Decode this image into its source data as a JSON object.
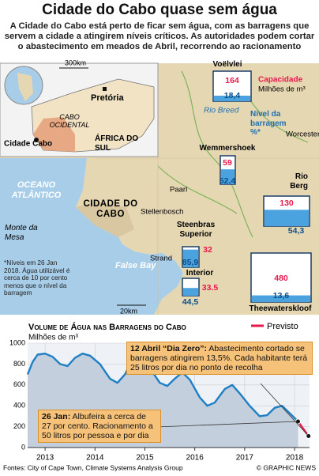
{
  "header": {
    "title": "Cidade do Cabo quase sem água",
    "subtitle": "A Cidade do Cabo está perto de ficar sem água, com as barragens que servem a cidade a atingirem níveis críticos. As autoridades podem cortar o abastecimento em meados de Abril, recorrendo ao racionamento"
  },
  "inset": {
    "scale": "300km",
    "city": "Pretória",
    "province": "CABO OCIDENTAL",
    "country": "ÁFRICA DO SUL",
    "cape_town": "Cidade Cabo"
  },
  "map": {
    "ocean": "OCEANO ATLÂNTICO",
    "city": "CIDADE DO CABO",
    "mountain": "Monte da Mesa",
    "bay": "False Bay",
    "places": [
      "Paarl",
      "Stellenbosch",
      "Strand",
      "Worcester"
    ],
    "river": "Rio Breed",
    "scale": "20km",
    "footnote": "*Níveis em 26 Jan 2018. Água utilizável é cerca de 10 por cento menos que o nível da barragem",
    "legend": {
      "capacity": "Capacidade",
      "unit": "Milhões de m³",
      "level": "Nível da barragem %*"
    },
    "dams": [
      {
        "name": "Voëlvlei",
        "capacity": 164,
        "level": {
          "value": 18.4,
          "label": "18,4"
        }
      },
      {
        "name": "Wemmershoek",
        "capacity": 59,
        "level": {
          "value": 52.4,
          "label": "52,4"
        }
      },
      {
        "name": "Rio Berg",
        "capacity": 130,
        "level": {
          "value": 54.3,
          "label": "54,3"
        }
      },
      {
        "name": "Steenbras Superior",
        "capacity": 32,
        "level": {
          "value": 85.9,
          "label": "85,9"
        }
      },
      {
        "name": "Interior",
        "capacity": 33.5,
        "level": {
          "value": 44.5,
          "label": "44,5"
        }
      },
      {
        "name": "Theewaterskloof",
        "capacity": 480,
        "level": {
          "value": 13.6,
          "label": "13,6"
        }
      }
    ]
  },
  "chart_data": {
    "type": "line",
    "title": "Volume de Água nas Barragens do Cabo",
    "y_label": "Milhões de m³",
    "xlim": [
      2012.65,
      2018.3
    ],
    "xticks": [
      2013,
      2014,
      2015,
      2016,
      2017,
      2018
    ],
    "ylim": [
      0,
      1000
    ],
    "yticks": [
      0,
      200,
      400,
      600,
      800,
      1000
    ],
    "grid": true,
    "area": true,
    "series": [
      {
        "name": "Volume",
        "color": "#1f7fc4",
        "x": [
          2012.65,
          2012.75,
          2012.85,
          2013.0,
          2013.15,
          2013.3,
          2013.45,
          2013.6,
          2013.75,
          2013.9,
          2014.1,
          2014.3,
          2014.45,
          2014.6,
          2014.75,
          2014.9,
          2015.1,
          2015.3,
          2015.45,
          2015.6,
          2015.75,
          2015.9,
          2016.1,
          2016.25,
          2016.4,
          2016.6,
          2016.75,
          2016.9,
          2017.1,
          2017.3,
          2017.45,
          2017.6,
          2017.75,
          2017.9,
          2018.07
        ],
        "values": [
          700,
          820,
          890,
          900,
          870,
          800,
          780,
          860,
          900,
          880,
          800,
          660,
          620,
          700,
          840,
          860,
          760,
          620,
          590,
          660,
          720,
          650,
          480,
          400,
          430,
          560,
          600,
          520,
          400,
          300,
          310,
          380,
          400,
          330,
          250
        ]
      },
      {
        "name": "Previsto",
        "color": "#e8194b",
        "x": [
          2018.07,
          2018.28
        ],
        "values": [
          250,
          110
        ]
      }
    ],
    "annotations": [
      {
        "bold": "12 Abril “Dia Zero”:",
        "text": "Abastecimento cortado se barragens atingirem 13,5%. Cada habitante terá 25 litros por dia no ponto de recolha"
      },
      {
        "bold": "26 Jan:",
        "text": "Albufeira a cerca de 27 por cento. Racionamento a 50 litros por pessoa e por dia"
      }
    ],
    "source": "Fontes: City of Cape Town, Climate Systems Analysis Group",
    "credit": "© GRAPHIC NEWS"
  }
}
